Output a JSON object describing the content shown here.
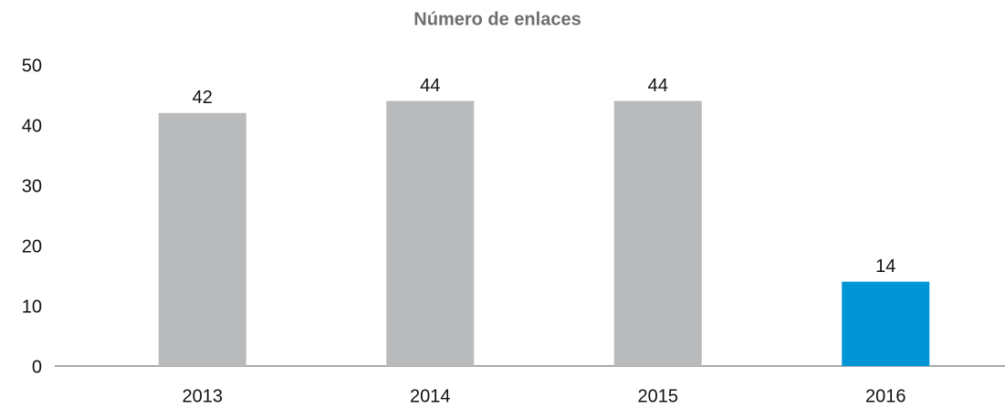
{
  "chart_data": {
    "type": "bar",
    "title": "Número de enlaces",
    "categories": [
      "2013",
      "2014",
      "2015",
      "2016"
    ],
    "values": [
      42,
      44,
      44,
      14
    ],
    "colors": [
      "#b9babc",
      "#b9babc",
      "#b9babc",
      "#0096d6"
    ],
    "ylim": [
      0,
      50
    ],
    "yticks": [
      0,
      10,
      20,
      30,
      40,
      50
    ],
    "grid": false
  }
}
